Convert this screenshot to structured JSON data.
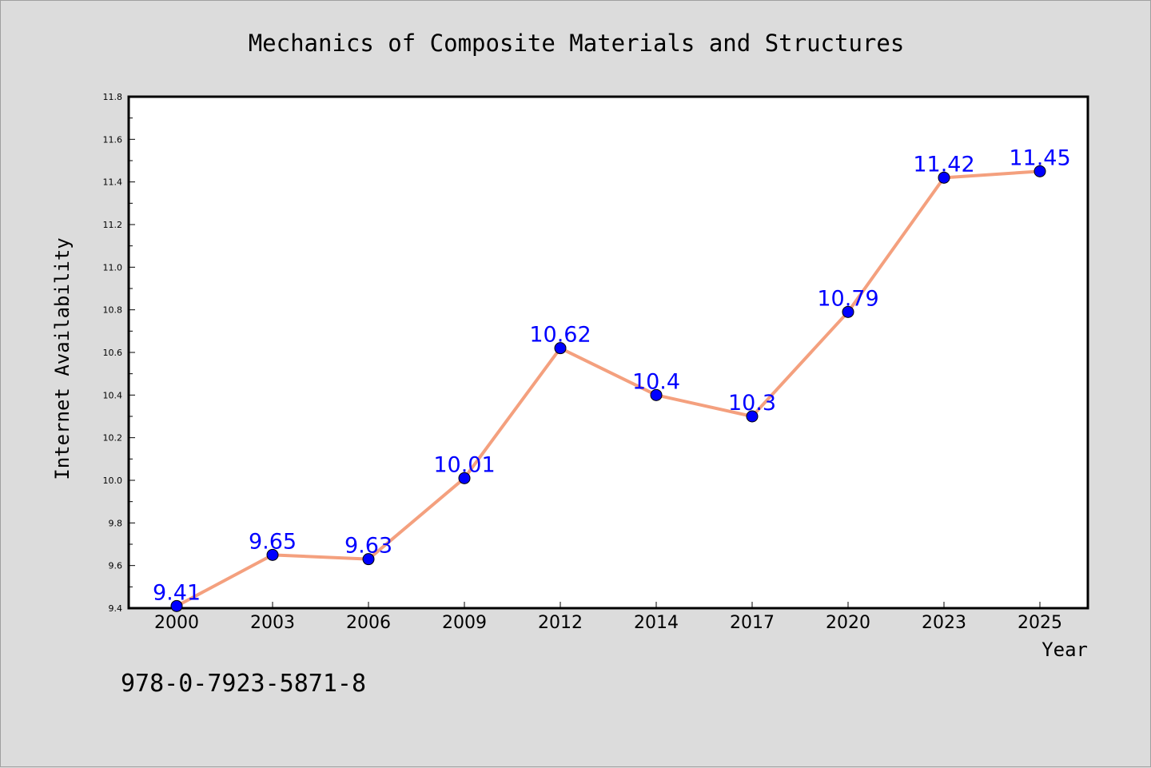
{
  "chart_data": {
    "type": "line",
    "title": "Mechanics of Composite Materials and Structures",
    "xlabel": "Year",
    "ylabel": "Internet Availability",
    "categories": [
      "2000",
      "2003",
      "2006",
      "2009",
      "2012",
      "2014",
      "2017",
      "2020",
      "2023",
      "2025"
    ],
    "series": [
      {
        "values": [
          9.41,
          9.65,
          9.63,
          10.01,
          10.62,
          10.4,
          10.3,
          10.79,
          11.42,
          11.45
        ],
        "data_labels": [
          "9.41",
          "9.65",
          "9.63",
          "10.01",
          "10.62",
          "10.4",
          "10.3",
          "10.79",
          "11.42",
          "11.45"
        ],
        "line_color": "#f4a07e",
        "marker_color": "#0000ff"
      }
    ],
    "ylim": [
      9.4,
      11.8
    ],
    "yticks": [
      "9.4",
      "9.6",
      "9.8",
      "10.0",
      "10.2",
      "10.4",
      "10.6",
      "10.8",
      "11.0",
      "11.2",
      "11.4",
      "11.6",
      "11.8"
    ],
    "grid": false,
    "legend": false,
    "data_label_color": "#0000ff"
  },
  "annotation": "978-0-7923-5871-8"
}
